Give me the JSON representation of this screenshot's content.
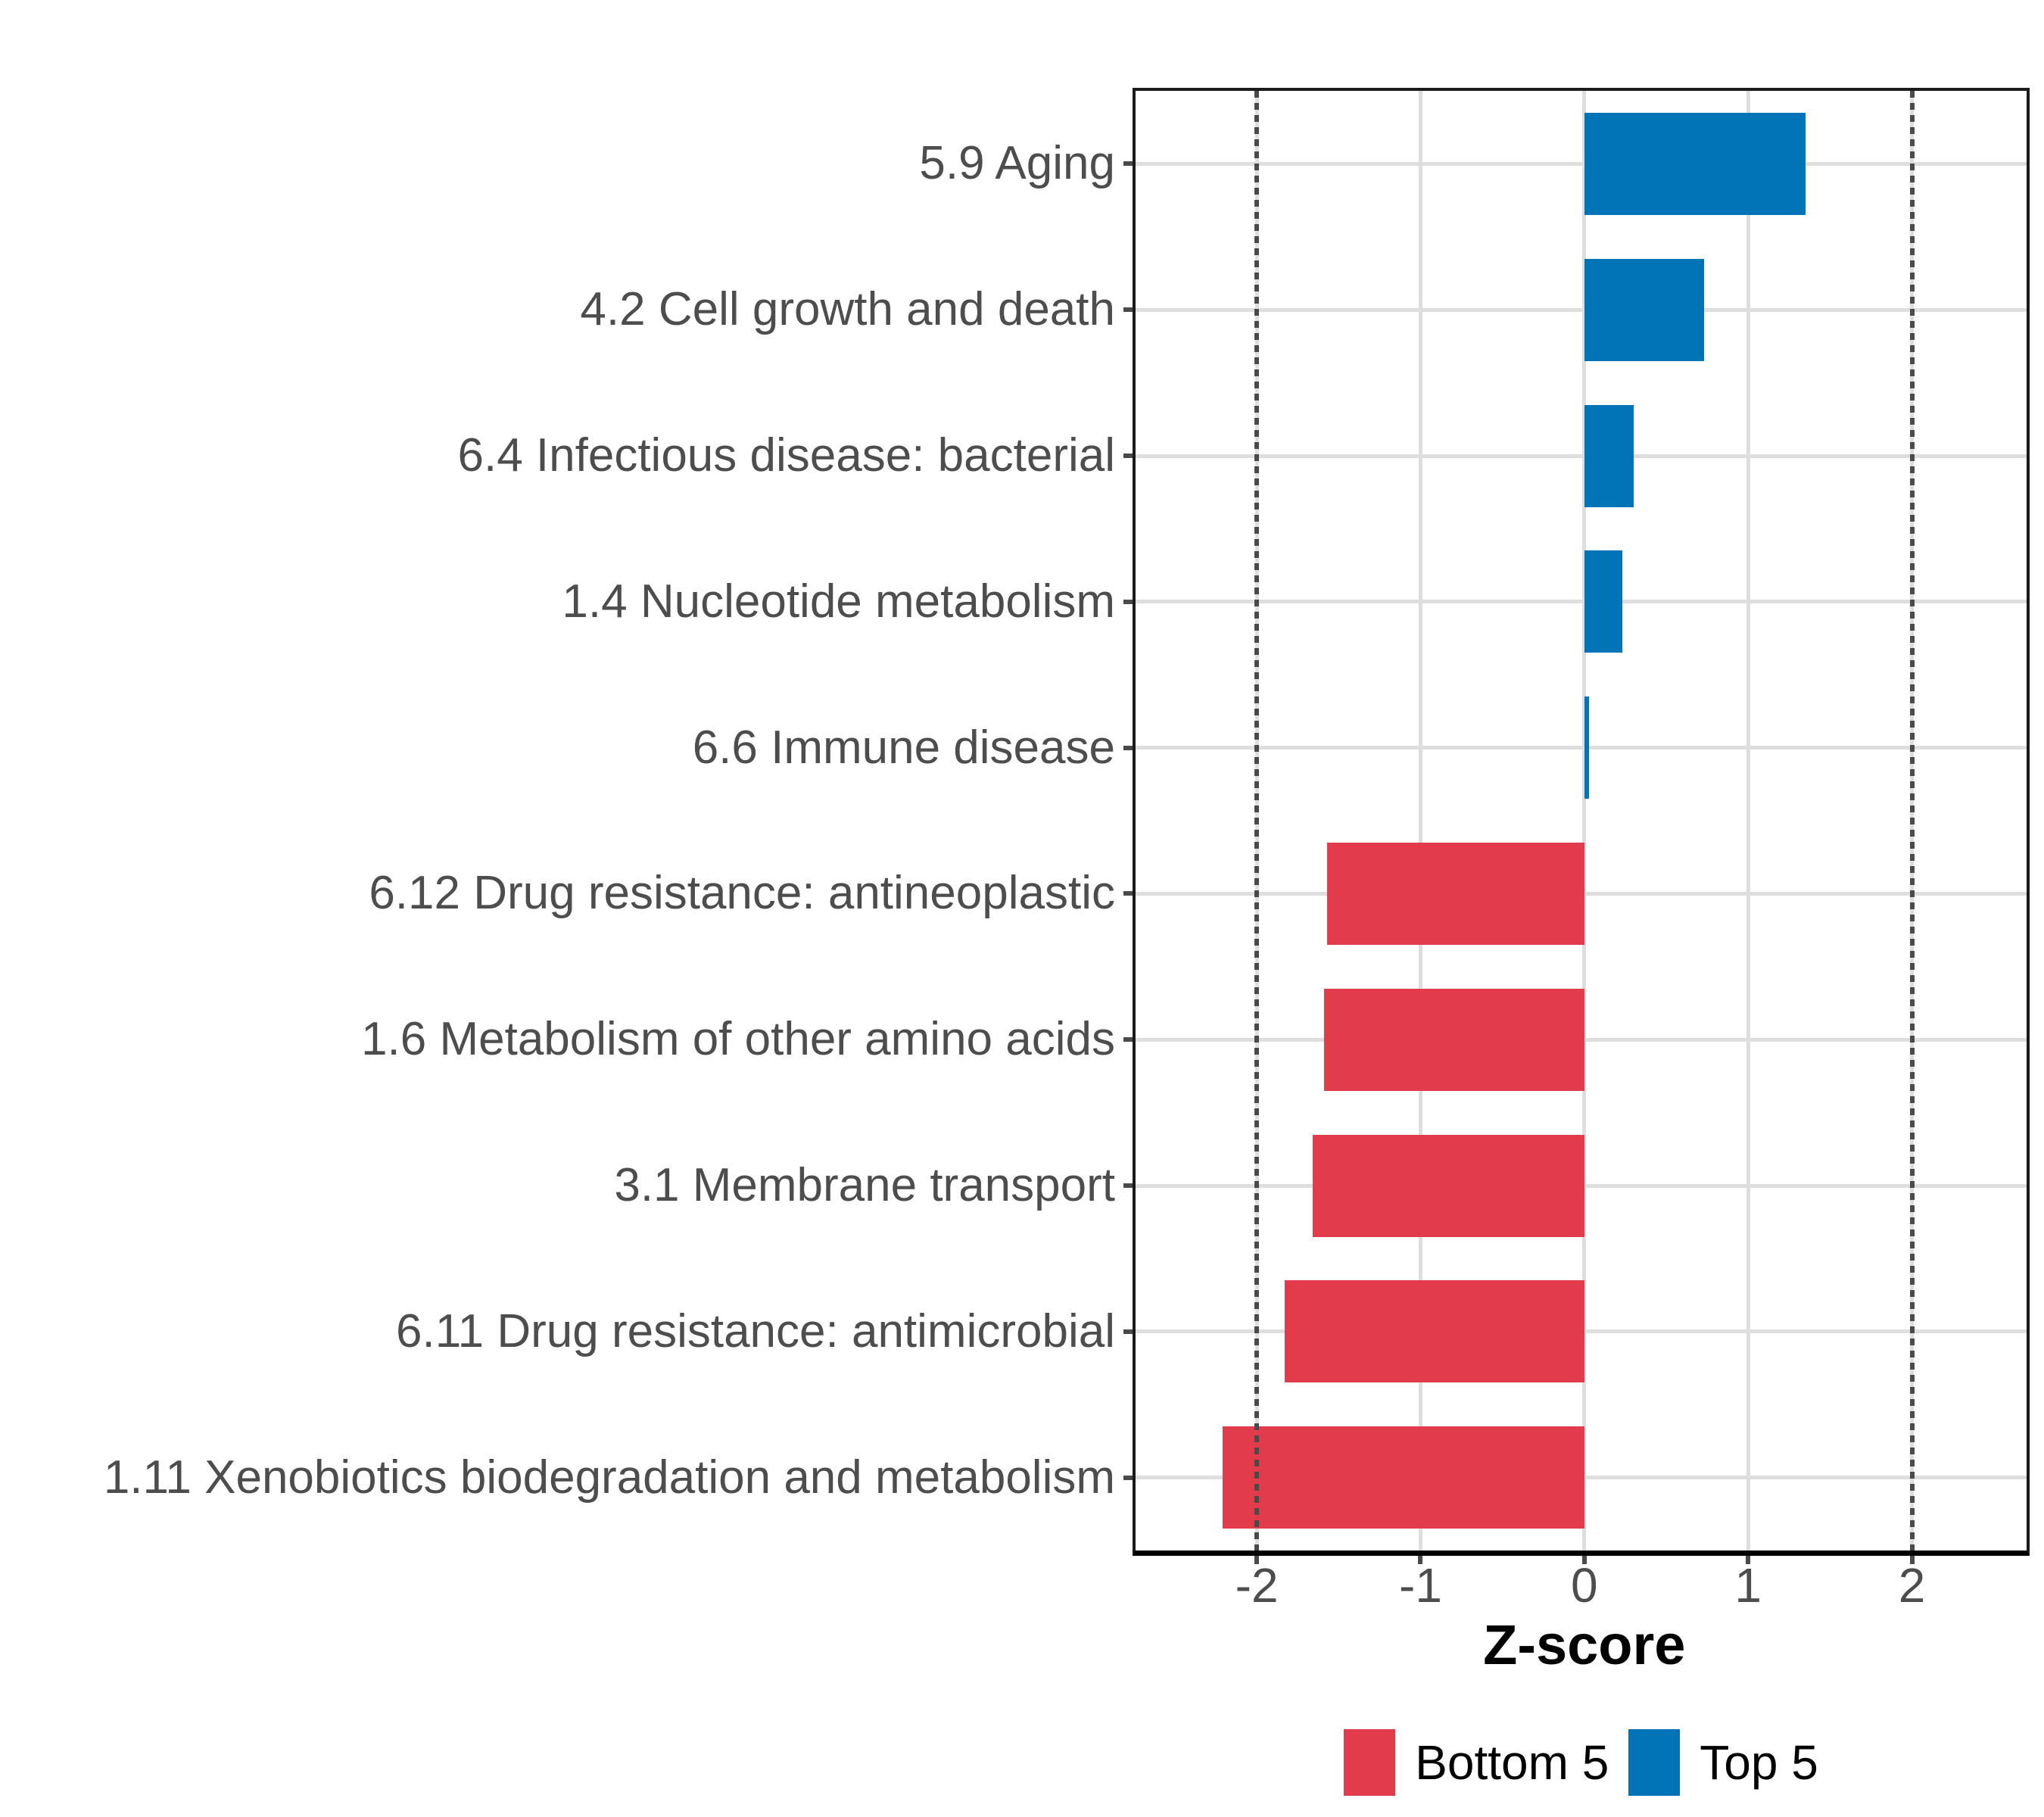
{
  "chart_data": {
    "type": "bar",
    "orientation": "horizontal",
    "title": "",
    "xlabel": "Z-score",
    "categories": [
      "5.9 Aging",
      "4.2 Cell growth and death",
      "6.4 Infectious disease: bacterial",
      "1.4 Nucleotide metabolism",
      "6.6 Immune disease",
      "6.12 Drug resistance: antineoplastic",
      "1.6 Metabolism of other amino acids",
      "3.1 Membrane transport",
      "6.11 Drug resistance: antimicrobial",
      "1.11 Xenobiotics biodegradation and metabolism"
    ],
    "values": [
      1.35,
      0.73,
      0.3,
      0.23,
      0.03,
      -1.57,
      -1.59,
      -1.66,
      -1.83,
      -2.21
    ],
    "groups": [
      "top5",
      "top5",
      "top5",
      "top5",
      "top5",
      "bottom5",
      "bottom5",
      "bottom5",
      "bottom5",
      "bottom5"
    ],
    "colors": {
      "top5": "#0074B6",
      "bottom5": "#E23B4C"
    },
    "x_ticks": [
      -2,
      -1,
      0,
      1,
      2
    ],
    "x_tick_labels": [
      "-2",
      "-1",
      "0",
      "1",
      "2"
    ],
    "xlim": [
      -2.74,
      2.7
    ],
    "reference_lines": [
      -2,
      2
    ],
    "grid": true,
    "grid_color": "#DEDEDE",
    "reference_line_color": "#4A4A4A",
    "axis_text_color": "#4D4D4D",
    "legend": {
      "position": "bottom-center",
      "items": [
        {
          "label": "Bottom 5",
          "key": "bottom5",
          "color": "#E23B4C"
        },
        {
          "label": "Top 5",
          "key": "top5",
          "color": "#0074B6"
        }
      ]
    }
  }
}
